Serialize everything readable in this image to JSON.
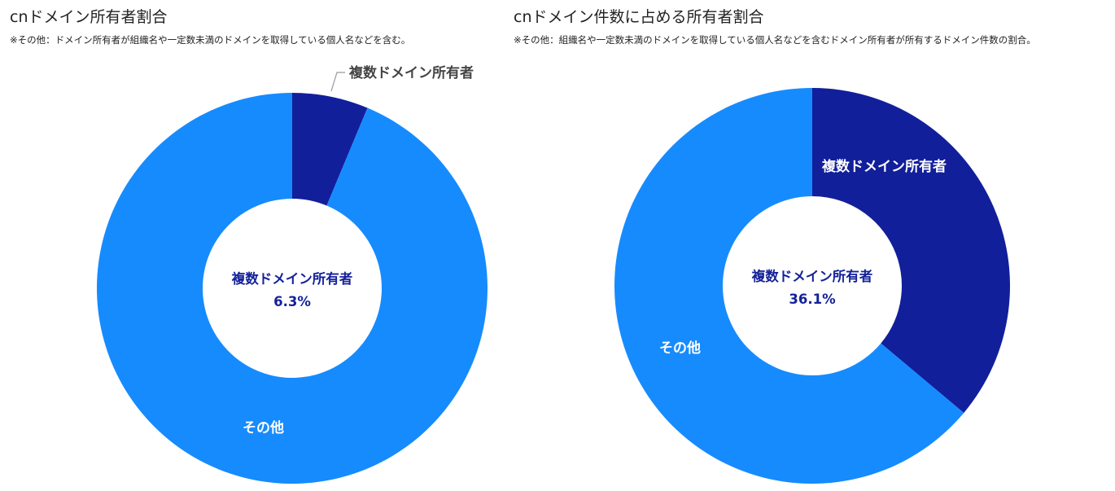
{
  "colors": {
    "multi_owner": "#121f9b",
    "others": "#168bfe",
    "label_dark": "#444444",
    "leader_line": "#999999",
    "center_text": "#14229a"
  },
  "charts": {
    "left": {
      "title": "cnドメイン所有者割合",
      "note": "※その他：ドメイン所有者が組織名や一定数未満のドメインを取得している個人名などを含む。",
      "center_label": "複数ドメイン所有者",
      "center_value": "6.3%",
      "labels": {
        "multi": "複数ドメイン所有者",
        "others": "その他"
      }
    },
    "right": {
      "title": "cnドメイン件数に占める所有者割合",
      "note": "※その他：組織名や一定数未満のドメインを取得している個人名などを含むドメイン所有者が所有するドメイン件数の割合。",
      "center_label": "複数ドメイン所有者",
      "center_value": "36.1%",
      "labels": {
        "multi": "複数ドメイン所有者",
        "others": "その他"
      }
    }
  },
  "chart_data": [
    {
      "type": "pie",
      "title": "cnドメイン所有者割合",
      "categories": [
        "複数ドメイン所有者",
        "その他"
      ],
      "values": [
        6.3,
        93.7
      ],
      "unit": "%"
    },
    {
      "type": "pie",
      "title": "cnドメイン件数に占める所有者割合",
      "categories": [
        "複数ドメイン所有者",
        "その他"
      ],
      "values": [
        36.1,
        63.9
      ],
      "unit": "%"
    }
  ]
}
